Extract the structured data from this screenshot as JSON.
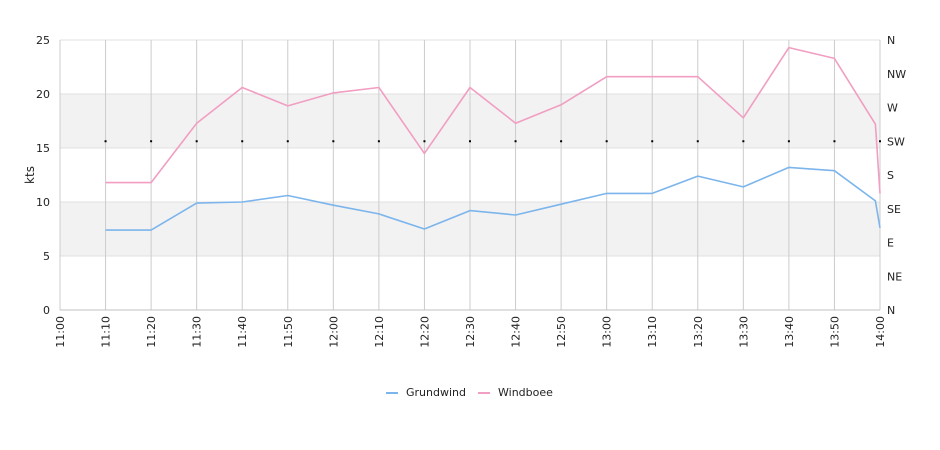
{
  "chart_data": {
    "type": "line",
    "title": "",
    "xlabel": "",
    "ylabel": "kts",
    "ylim": [
      0,
      25
    ],
    "yticks": [
      "0",
      "5",
      "10",
      "15",
      "20",
      "25"
    ],
    "x_ticks": [
      "11:00",
      "11:10",
      "11:20",
      "11:30",
      "11:40",
      "11:50",
      "12:00",
      "12:10",
      "12:20",
      "12:30",
      "12:40",
      "12:50",
      "13:00",
      "13:10",
      "13:20",
      "13:30",
      "13:40",
      "13:50",
      "14:00"
    ],
    "right_axis_labels": [
      "N",
      "NE",
      "E",
      "SE",
      "S",
      "SW",
      "W",
      "NW",
      "N"
    ],
    "grid": true,
    "legend_position": "bottom",
    "colors": {
      "Grundwind": "#7cb5ec",
      "Windboee": "#f19ec2"
    },
    "series": [
      {
        "name": "Grundwind",
        "points": [
          [
            "11:10",
            7.4
          ],
          [
            "11:20",
            7.4
          ],
          [
            "11:30",
            9.9
          ],
          [
            "11:40",
            10.0
          ],
          [
            "11:50",
            10.6
          ],
          [
            "12:00",
            9.7
          ],
          [
            "12:10",
            8.9
          ],
          [
            "12:20",
            7.5
          ],
          [
            "12:30",
            9.2
          ],
          [
            "12:40",
            8.8
          ],
          [
            "12:50",
            9.8
          ],
          [
            "13:00",
            10.8
          ],
          [
            "13:10",
            10.8
          ],
          [
            "13:20",
            12.4
          ],
          [
            "13:30",
            11.4
          ],
          [
            "13:40",
            13.2
          ],
          [
            "13:50",
            12.9
          ],
          [
            "13:59",
            10.1
          ],
          [
            "14:00",
            7.6
          ]
        ]
      },
      {
        "name": "Windboee",
        "points": [
          [
            "11:10",
            11.8
          ],
          [
            "11:20",
            11.8
          ],
          [
            "11:30",
            17.3
          ],
          [
            "11:40",
            20.6
          ],
          [
            "11:50",
            18.9
          ],
          [
            "12:00",
            20.1
          ],
          [
            "12:10",
            20.6
          ],
          [
            "12:20",
            14.5
          ],
          [
            "12:30",
            20.6
          ],
          [
            "12:40",
            17.3
          ],
          [
            "12:50",
            19.0
          ],
          [
            "13:00",
            21.6
          ],
          [
            "13:10",
            21.6
          ],
          [
            "13:20",
            21.6
          ],
          [
            "13:30",
            17.8
          ],
          [
            "13:40",
            24.3
          ],
          [
            "13:50",
            23.3
          ],
          [
            "13:59",
            17.2
          ],
          [
            "14:00",
            10.8
          ]
        ]
      }
    ],
    "direction_points": [
      "11:10",
      "11:20",
      "11:30",
      "11:40",
      "11:50",
      "12:00",
      "12:10",
      "12:20",
      "12:30",
      "12:40",
      "12:50",
      "13:00",
      "13:10",
      "13:20",
      "13:30",
      "13:40",
      "13:50",
      "14:00"
    ],
    "direction_value": "SW"
  }
}
